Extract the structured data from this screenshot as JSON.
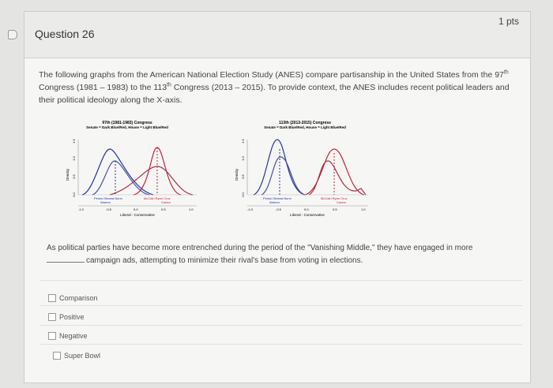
{
  "question": {
    "title": "Question 26",
    "points": "1 pts",
    "intro_a": "The following graphs from the American National Election Study (ANES) compare partisanship in the United States from the 97",
    "intro_sup1": "th",
    "intro_b": " Congress (1981 – 1983) to the 113",
    "intro_sup2": "th",
    "intro_c": " Congress (2013 – 2015). To provide context, the ANES includes recent political leaders and their political ideology along the X-axis.",
    "prompt_a": "As political parties have become more entrenched during the period of the \"Vanishing Middle,\" they have engaged in more",
    "prompt_b": "campaign ads, attempting to minimize their rival's base from voting in elections."
  },
  "figure": {
    "left": {
      "title": "97th (1981-1983) Congress",
      "subtitle": "Senate = Dark Blue/Red, House = Light Blue/Red"
    },
    "right": {
      "title": "113th (2013-2015) Congress",
      "subtitle": "Senate = Dark Blue/Red, House = Light Blue/Red"
    },
    "ylabel": "Density",
    "yticks": [
      "0.0",
      "0.5",
      "1.0",
      "1.5"
    ],
    "xticks": [
      "-1.0",
      "-0.5",
      "0.0",
      "0.5",
      "1.0"
    ],
    "xlabel": "Liberal - Conservative",
    "dem_names": "Pelosi Obama Nunn",
    "dem_name2": "Warren",
    "rep_names": "McCain  Ryan  Cruz",
    "rep_name2": "Cantor",
    "colors": {
      "dem": "#2233aa",
      "rep": "#cc2233"
    }
  },
  "options": [
    {
      "label": "Comparison",
      "checked": false
    },
    {
      "label": "Positive",
      "checked": false
    },
    {
      "label": "Negative",
      "checked": false
    },
    {
      "label": "Super Bowl",
      "checked": false
    }
  ]
}
